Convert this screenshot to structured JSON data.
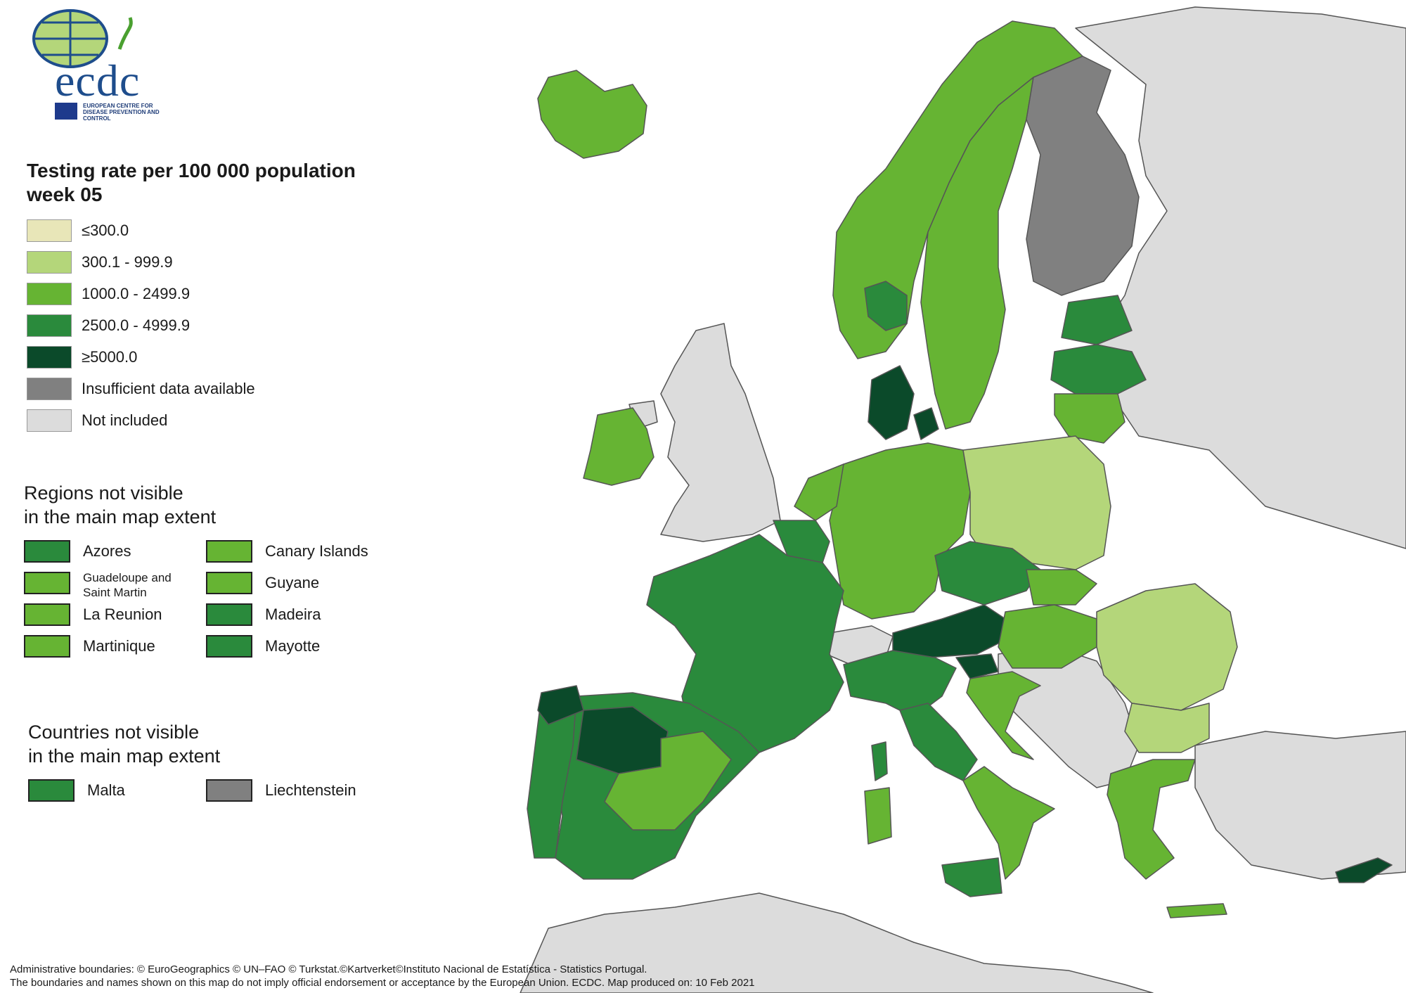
{
  "colors": {
    "le300": "#e8e6b8",
    "c300_999": "#b4d67a",
    "c1000_2499": "#66b433",
    "c2500_4999": "#2a8a3c",
    "ge5000": "#0b4a2a",
    "insufficient": "#808080",
    "not_included": "#dcdcdc",
    "sea": "#ffffff",
    "border": "#6a6a6a"
  },
  "logo": {
    "name": "ecdc",
    "subtitle": "EUROPEAN CENTRE FOR DISEASE PREVENTION AND CONTROL"
  },
  "legend": {
    "title_line1": "Testing rate per 100 000 population",
    "title_line2": "week 05",
    "items": [
      {
        "label": "≤300.0",
        "color": "#e8e6b8"
      },
      {
        "label": "300.1 - 999.9",
        "color": "#b4d67a"
      },
      {
        "label": "1000.0 - 2499.9",
        "color": "#66b433"
      },
      {
        "label": "2500.0 - 4999.9",
        "color": "#2a8a3c"
      },
      {
        "label": "≥5000.0",
        "color": "#0b4a2a"
      },
      {
        "label": "Insufficient data available",
        "color": "#808080"
      },
      {
        "label": "Not included",
        "color": "#dcdcdc"
      }
    ]
  },
  "regions_section": {
    "title_line1": "Regions not visible",
    "title_line2": "in the main map extent",
    "items": [
      {
        "label": "Azores",
        "color": "#2a8a3c"
      },
      {
        "label": "Canary Islands",
        "color": "#66b433"
      },
      {
        "label": "Guadeloupe and Saint Martin",
        "color": "#66b433"
      },
      {
        "label": "Guyane",
        "color": "#66b433"
      },
      {
        "label": "La Reunion",
        "color": "#66b433"
      },
      {
        "label": "Madeira",
        "color": "#2a8a3c"
      },
      {
        "label": "Martinique",
        "color": "#66b433"
      },
      {
        "label": "Mayotte",
        "color": "#2a8a3c"
      }
    ]
  },
  "countries_section": {
    "title_line1": "Countries not visible",
    "title_line2": "in the main map extent",
    "items": [
      {
        "label": "Malta",
        "color": "#2a8a3c"
      },
      {
        "label": "Liechtenstein",
        "color": "#808080"
      }
    ]
  },
  "footer": {
    "line1": "Administrative boundaries: © EuroGeographics © UN–FAO © Turkstat.©Kartverket©Instituto Nacional de Estatística - Statistics Portugal.",
    "line2": "The boundaries and names shown on this map do not imply official endorsement or acceptance by the European Union. ECDC. Map produced on: 10 Feb 2021"
  }
}
